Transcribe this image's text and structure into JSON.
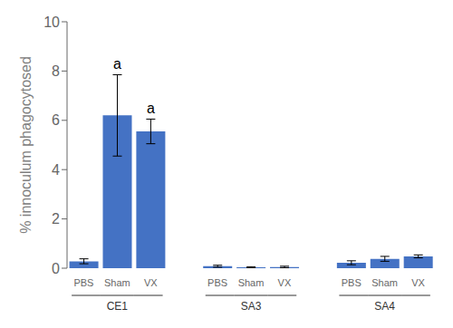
{
  "chart_data": {
    "type": "bar",
    "ylabel": "% innoculum phagocytosed",
    "groups": [
      "CE1",
      "SA3",
      "SA4"
    ],
    "categories": [
      "PBS",
      "Sham",
      "VX"
    ],
    "values": [
      [
        0.28,
        6.2,
        5.55
      ],
      [
        0.08,
        0.04,
        0.05
      ],
      [
        0.22,
        0.38,
        0.48
      ]
    ],
    "errors": [
      [
        0.1,
        1.65,
        0.5
      ],
      [
        0.04,
        0.02,
        0.03
      ],
      [
        0.08,
        0.1,
        0.06
      ]
    ],
    "annotations": [
      {
        "text": "a",
        "group": "CE1",
        "category": "Sham"
      },
      {
        "text": "a",
        "group": "CE1",
        "category": "VX"
      }
    ],
    "color": "#4472C4",
    "ylim": [
      0,
      10
    ],
    "yticks": [
      0,
      2,
      4,
      6,
      8,
      10
    ],
    "grid": false
  }
}
